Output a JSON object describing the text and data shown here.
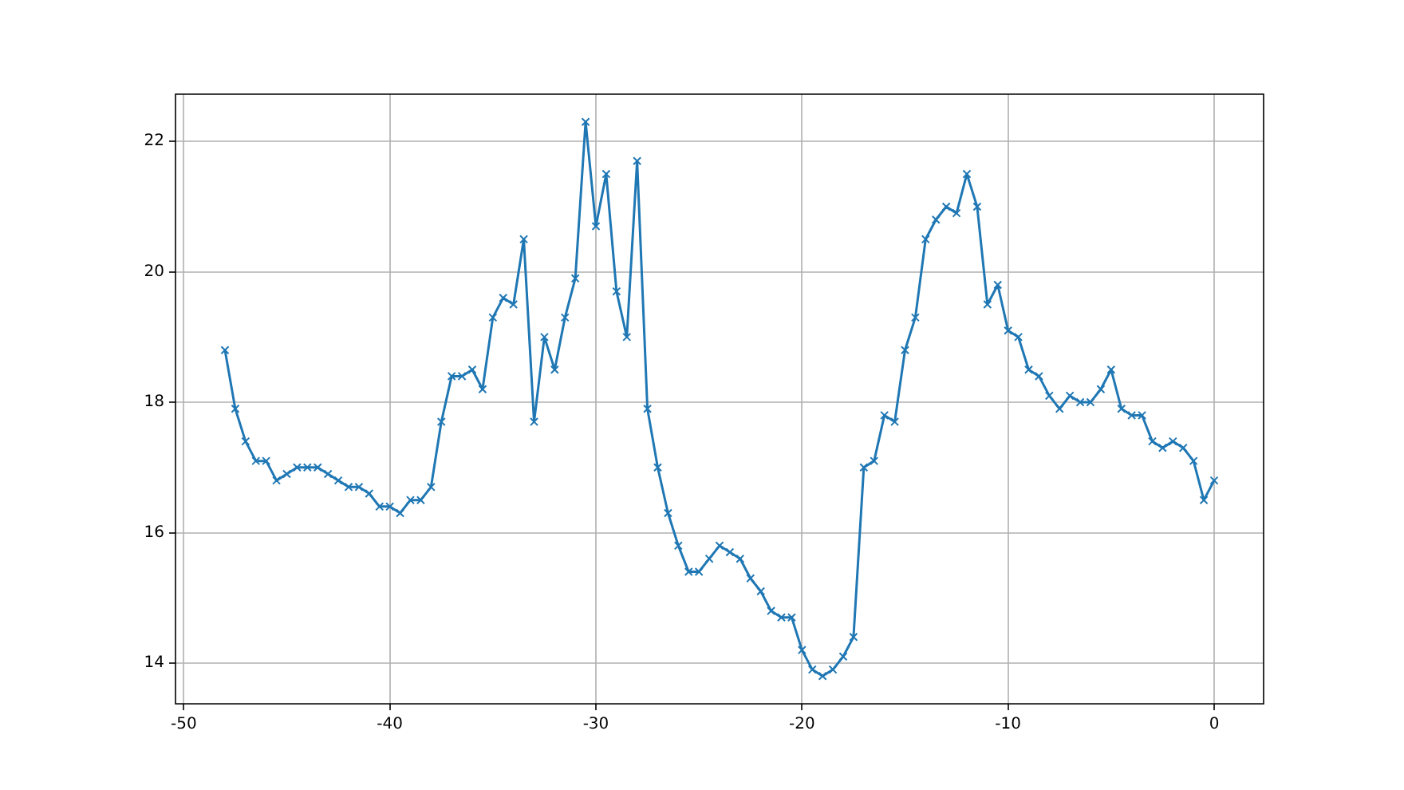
{
  "chart_data": {
    "type": "line",
    "color": "#1f77b4",
    "marker": "cross",
    "line_style": "solid",
    "grid": true,
    "x": [
      -48,
      -47.5,
      -47,
      -46.5,
      -46,
      -45.5,
      -45,
      -44.5,
      -44,
      -43.5,
      -43,
      -42.5,
      -42,
      -41.5,
      -41,
      -40.5,
      -40,
      -39.5,
      -39,
      -38.5,
      -38,
      -37.5,
      -37,
      -36.5,
      -36,
      -35.5,
      -35,
      -34.5,
      -34,
      -33.5,
      -33,
      -32.5,
      -32,
      -31.5,
      -31,
      -30.5,
      -30,
      -29.5,
      -29,
      -28.5,
      -28,
      -27.5,
      -27,
      -26.5,
      -26,
      -25.5,
      -25,
      -24.5,
      -24,
      -23.5,
      -23,
      -22.5,
      -22,
      -21.5,
      -21,
      -20.5,
      -20,
      -19.5,
      -19,
      -18.5,
      -18,
      -17.5,
      -17,
      -16.5,
      -16,
      -15.5,
      -15,
      -14.5,
      -14,
      -13.5,
      -13,
      -12.5,
      -12,
      -11.5,
      -11,
      -10.5,
      -10,
      -9.5,
      -9,
      -8.5,
      -8,
      -7.5,
      -7,
      -6.5,
      -6,
      -5.5,
      -5,
      -4.5,
      -4,
      -3.5,
      -3,
      -2.5,
      -2,
      -1.5,
      -1,
      -0.5,
      0
    ],
    "values": [
      18.8,
      17.9,
      17.4,
      17.1,
      17.1,
      16.8,
      16.9,
      17.0,
      17.0,
      17.0,
      16.9,
      16.8,
      16.7,
      16.7,
      16.6,
      16.4,
      16.4,
      16.3,
      16.5,
      16.5,
      16.7,
      17.7,
      18.4,
      18.4,
      18.5,
      18.2,
      19.3,
      19.6,
      19.5,
      20.5,
      17.7,
      19.0,
      18.5,
      19.3,
      19.9,
      22.3,
      20.7,
      21.5,
      19.7,
      19.0,
      21.7,
      17.9,
      17.0,
      16.3,
      15.8,
      15.4,
      15.4,
      15.6,
      15.8,
      15.7,
      15.6,
      15.3,
      15.1,
      14.8,
      14.7,
      14.7,
      14.2,
      13.9,
      13.8,
      13.9,
      14.1,
      14.4,
      17.0,
      17.1,
      17.8,
      17.7,
      18.8,
      19.3,
      20.5,
      20.8,
      21.0,
      20.9,
      21.5,
      21.0,
      19.5,
      19.8,
      19.1,
      19.0,
      18.5,
      18.4,
      18.1,
      17.9,
      18.1,
      18.0,
      18.0,
      18.2,
      18.5,
      17.9,
      17.8,
      17.8,
      17.4,
      17.3,
      17.4,
      17.3,
      17.1,
      16.5,
      16.8
    ],
    "xlim": [
      -50.4,
      2.4
    ],
    "ylim": [
      13.375,
      22.725
    ],
    "xticks": [
      -50,
      -40,
      -30,
      -20,
      -10,
      0
    ],
    "yticks": [
      14,
      16,
      18,
      20,
      22
    ]
  }
}
